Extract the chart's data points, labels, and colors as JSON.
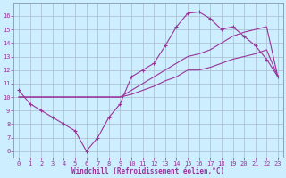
{
  "xlabel": "Windchill (Refroidissement éolien,°C)",
  "background_color": "#cceeff",
  "line_color": "#993399",
  "grid_color": "#aabbcc",
  "x_hours": [
    0,
    1,
    2,
    3,
    4,
    5,
    6,
    7,
    8,
    9,
    10,
    11,
    12,
    13,
    14,
    15,
    16,
    17,
    18,
    19,
    20,
    21,
    22,
    23
  ],
  "line1_y": [
    10.5,
    9.5,
    9.0,
    8.5,
    8.0,
    7.5,
    6.0,
    7.0,
    8.5,
    9.5,
    11.5,
    12.0,
    12.5,
    13.8,
    15.2,
    16.2,
    16.3,
    15.8,
    15.0,
    15.2,
    14.5,
    13.8,
    12.8,
    11.5
  ],
  "line2_y": [
    10.0,
    10.0,
    10.0,
    10.0,
    10.0,
    10.0,
    10.0,
    10.0,
    10.0,
    10.0,
    10.5,
    11.0,
    11.5,
    12.0,
    12.5,
    13.0,
    13.2,
    13.5,
    14.0,
    14.5,
    14.8,
    15.0,
    15.2,
    11.5
  ],
  "line3_y": [
    10.0,
    10.0,
    10.0,
    10.0,
    10.0,
    10.0,
    10.0,
    10.0,
    10.0,
    10.0,
    10.2,
    10.5,
    10.8,
    11.2,
    11.5,
    12.0,
    12.0,
    12.2,
    12.5,
    12.8,
    13.0,
    13.2,
    13.5,
    11.5
  ],
  "ylim_min": 5.5,
  "ylim_max": 17.0,
  "xlim_min": -0.5,
  "xlim_max": 23.5,
  "yticks": [
    6,
    7,
    8,
    9,
    10,
    11,
    12,
    13,
    14,
    15,
    16
  ],
  "xticks": [
    0,
    1,
    2,
    3,
    4,
    5,
    6,
    7,
    8,
    9,
    10,
    11,
    12,
    13,
    14,
    15,
    16,
    17,
    18,
    19,
    20,
    21,
    22,
    23
  ],
  "tick_fontsize": 5.0,
  "xlabel_fontsize": 5.5
}
